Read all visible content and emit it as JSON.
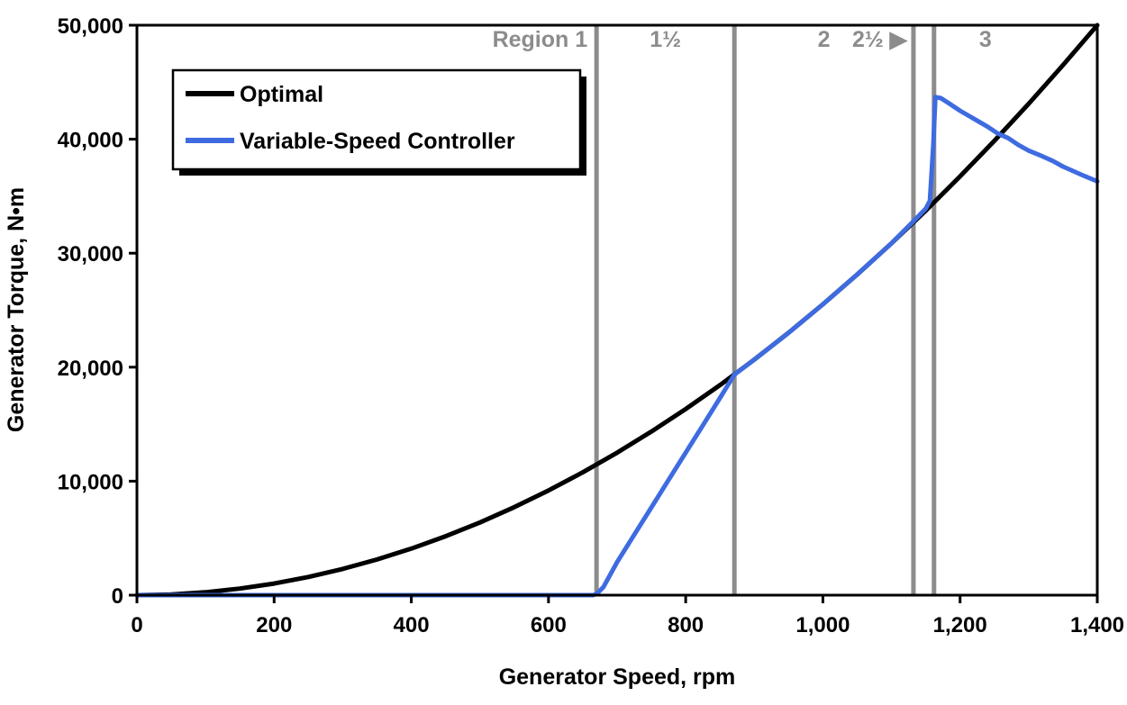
{
  "chart_data": {
    "type": "line",
    "title": "",
    "xlabel": "Generator Speed, rpm",
    "ylabel": "Generator Torque, N•m",
    "xlim": [
      0,
      1400
    ],
    "ylim": [
      0,
      50000
    ],
    "x_tick_step": 200,
    "y_tick_step": 10000,
    "x_tick_labels": [
      "0",
      "200",
      "400",
      "600",
      "800",
      "1,000",
      "1,200",
      "1,400"
    ],
    "y_tick_labels": [
      "0",
      "10,000",
      "20,000",
      "30,000",
      "40,000",
      "50,000"
    ],
    "grid": false,
    "legend_position": "top-left",
    "colors": {
      "optimal_line": "#000000",
      "controller_line": "#3E6BE0",
      "region_line": "#8c8c8c",
      "region_label": "#8c8c8c",
      "plot_border": "#000000",
      "background": "#ffffff"
    },
    "region_boundaries_rpm": [
      670,
      871,
      1132,
      1162
    ],
    "region_labels": [
      "Region 1",
      "1½",
      "2",
      "2½ ▶",
      "3"
    ],
    "series": [
      {
        "name": "Optimal",
        "color": "#000000",
        "points": [
          [
            0,
            0
          ],
          [
            50,
            64
          ],
          [
            100,
            255
          ],
          [
            150,
            574
          ],
          [
            200,
            1020
          ],
          [
            250,
            1594
          ],
          [
            300,
            2296
          ],
          [
            350,
            3125
          ],
          [
            400,
            4082
          ],
          [
            450,
            5166
          ],
          [
            500,
            6378
          ],
          [
            550,
            7717
          ],
          [
            600,
            9184
          ],
          [
            650,
            10778
          ],
          [
            700,
            12500
          ],
          [
            750,
            14349
          ],
          [
            800,
            16327
          ],
          [
            850,
            18431
          ],
          [
            900,
            20663
          ],
          [
            950,
            23023
          ],
          [
            1000,
            25510
          ],
          [
            1050,
            28125
          ],
          [
            1100,
            30867
          ],
          [
            1150,
            33737
          ],
          [
            1200,
            36735
          ],
          [
            1250,
            39860
          ],
          [
            1300,
            43112
          ],
          [
            1350,
            46492
          ],
          [
            1400,
            50000
          ]
        ]
      },
      {
        "name": "Variable-Speed Controller",
        "color": "#3E6BE0",
        "points": [
          [
            0,
            0
          ],
          [
            300,
            0
          ],
          [
            600,
            0
          ],
          [
            665,
            0
          ],
          [
            670,
            100
          ],
          [
            680,
            700
          ],
          [
            700,
            2900
          ],
          [
            725,
            5300
          ],
          [
            750,
            7700
          ],
          [
            775,
            10100
          ],
          [
            800,
            12500
          ],
          [
            825,
            14900
          ],
          [
            850,
            17300
          ],
          [
            871,
            19350
          ],
          [
            900,
            20660
          ],
          [
            950,
            23020
          ],
          [
            1000,
            25510
          ],
          [
            1050,
            28130
          ],
          [
            1100,
            30870
          ],
          [
            1132,
            32800
          ],
          [
            1150,
            33900
          ],
          [
            1156,
            34600
          ],
          [
            1161,
            39500
          ],
          [
            1164,
            43700
          ],
          [
            1172,
            43600
          ],
          [
            1185,
            43100
          ],
          [
            1200,
            42500
          ],
          [
            1220,
            41800
          ],
          [
            1240,
            41100
          ],
          [
            1255,
            40500
          ],
          [
            1270,
            40100
          ],
          [
            1285,
            39500
          ],
          [
            1300,
            39000
          ],
          [
            1320,
            38500
          ],
          [
            1335,
            38100
          ],
          [
            1350,
            37600
          ],
          [
            1365,
            37200
          ],
          [
            1380,
            36800
          ],
          [
            1400,
            36300
          ]
        ]
      }
    ]
  }
}
